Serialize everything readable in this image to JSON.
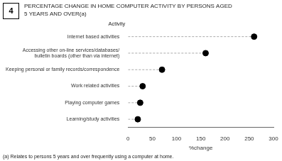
{
  "chart_data": {
    "type": "lollipop",
    "title": [
      "PERCENTAGE CHANGE IN HOME COMPUTER ACTIVITY BY PERSONS AGED",
      "5 YEARS AND OVER(a)"
    ],
    "annotations": [
      "4",
      "(a) Relates to persons 5 years and over frequently using a computer at home."
    ],
    "categories": [
      "Internet based activities",
      "Accessing other on-line services/databases/\nbulletin boards (other than via internet)",
      "Keeping personal or family records/correspondence",
      "Work related activities",
      "Playing computer games",
      "Learning/study activities"
    ],
    "values": [
      260,
      160,
      70,
      30,
      25,
      20
    ],
    "xlabel": "%change",
    "ylabel": "Activity",
    "xlim": [
      0,
      300
    ],
    "xticks": [
      0,
      50,
      100,
      150,
      200,
      250,
      300
    ],
    "orientation": "horizontal",
    "color": "#000000",
    "marker": "circle",
    "line_style": "dashed",
    "grid": false
  }
}
